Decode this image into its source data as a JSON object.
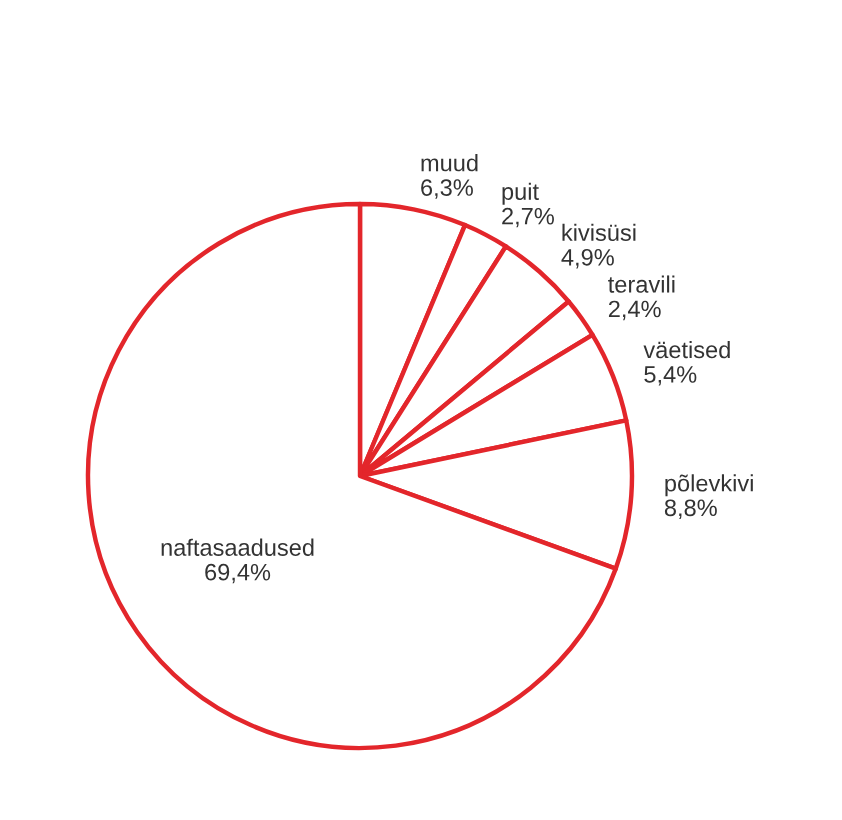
{
  "chart_data": {
    "type": "pie",
    "categories": [
      "muud",
      "puit",
      "kivisüsi",
      "teravili",
      "väetised",
      "põlevkivi",
      "naftasaadused"
    ],
    "values": [
      6.3,
      2.7,
      4.9,
      2.4,
      5.4,
      8.8,
      69.4
    ],
    "value_labels": [
      "6,3%",
      "2,7%",
      "4,9%",
      "2,4%",
      "5,4%",
      "8,8%",
      "69,4%"
    ],
    "colors": [
      "#e3262b",
      "#e3262b",
      "#e3262b",
      "#e3262b",
      "#e3262b",
      "#e3262b",
      "#e3262b"
    ]
  }
}
